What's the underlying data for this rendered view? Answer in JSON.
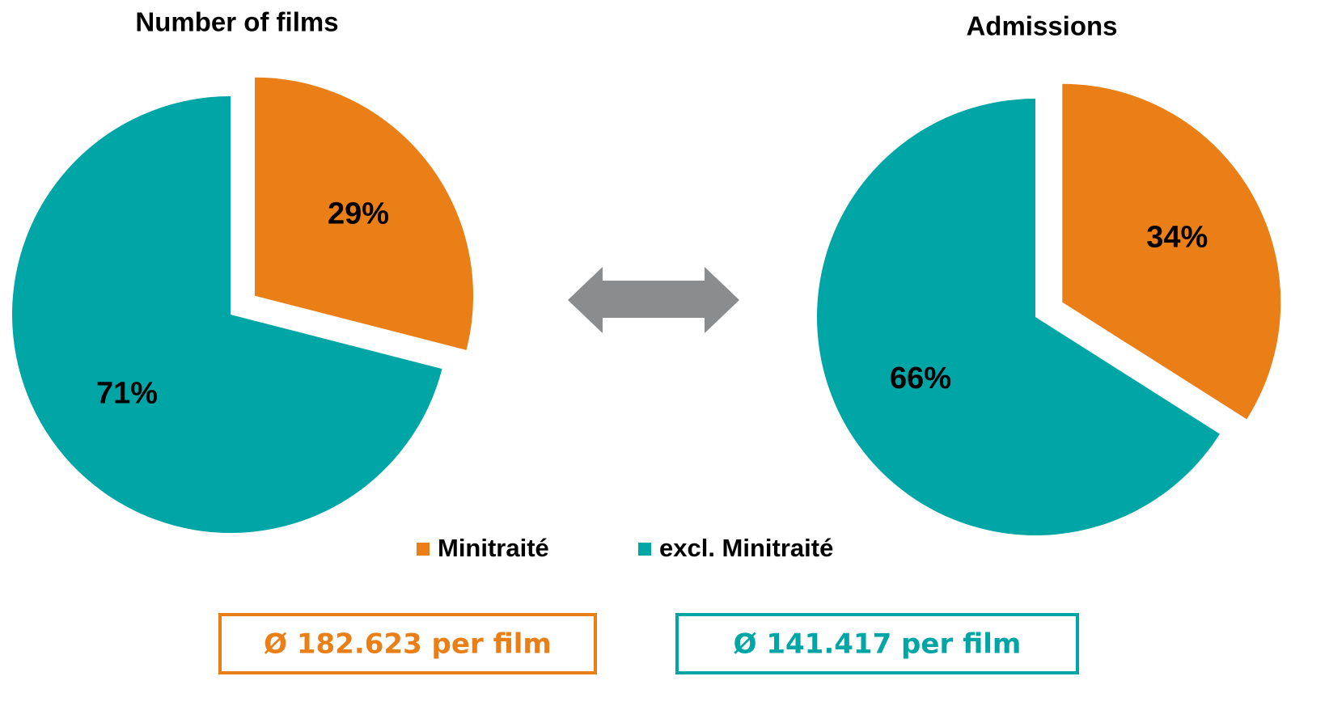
{
  "chart_data": [
    {
      "type": "pie",
      "title": "Number of films",
      "categories": [
        "Minitraité",
        "excl. Minitraité"
      ],
      "values": [
        29,
        71
      ],
      "value_labels": [
        "29%",
        "71%"
      ],
      "colors": [
        "#ea7f17",
        "#00a5a5"
      ]
    },
    {
      "type": "pie",
      "title": "Admissions",
      "categories": [
        "Minitraité",
        "excl. Minitraité"
      ],
      "values": [
        34,
        66
      ],
      "value_labels": [
        "34%",
        "66%"
      ],
      "colors": [
        "#ea7f17",
        "#00a5a5"
      ]
    }
  ],
  "annotations": [
    {
      "text": "Ø 182.623 per film",
      "color": "#ea7f17"
    },
    {
      "text": "Ø 141.417 per film",
      "color": "#00a5a5"
    }
  ]
}
